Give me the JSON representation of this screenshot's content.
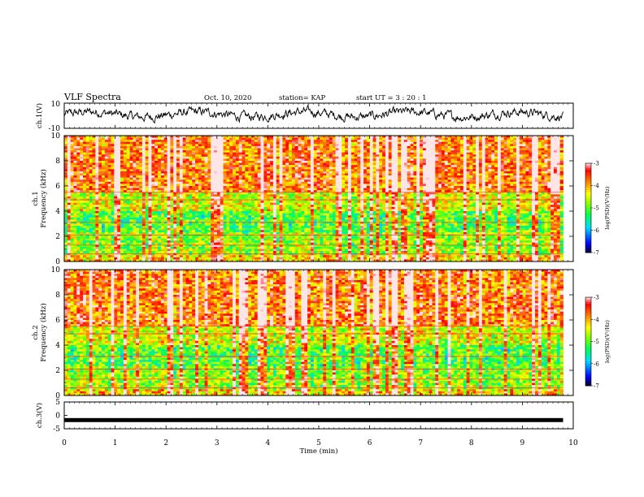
{
  "header": {
    "title": "VLF Spectra",
    "date": "Oct. 10, 2020",
    "station": "station= KAP",
    "start": "start  UT =  3 : 20 : 1"
  },
  "chart_data": [
    {
      "type": "line",
      "name": "ch1-waveform",
      "ylabel": "ch.1(V)",
      "ylim": [
        -10,
        10
      ],
      "y_ticklabels": [
        "10",
        "-10"
      ],
      "xlim": [
        0,
        10
      ]
    },
    {
      "type": "heatmap",
      "name": "ch1-spectrogram",
      "ylabel_line1": "ch.1",
      "ylabel_line2": "Frequency (kHz)",
      "ylim": [
        0,
        10
      ],
      "y_ticklabels": [
        "0",
        "2",
        "4",
        "6",
        "8",
        "10"
      ],
      "xlim": [
        0,
        10
      ],
      "colorbar": {
        "label": "log(PSD)(V²/Hz)",
        "range": [
          -7,
          -3
        ],
        "ticklabels": [
          "-3",
          "-4",
          "-5",
          "-6",
          "-7"
        ]
      },
      "data_extent_min": 9.8
    },
    {
      "type": "heatmap",
      "name": "ch2-spectrogram",
      "ylabel_line1": "ch.2",
      "ylabel_line2": "Frequency (kHz)",
      "ylim": [
        0,
        10
      ],
      "y_ticklabels": [
        "0",
        "2",
        "4",
        "6",
        "8",
        "10"
      ],
      "xlim": [
        0,
        10
      ],
      "colorbar": {
        "label": "log(PSD)(V²/Hz)",
        "range": [
          -7,
          -3
        ],
        "ticklabels": [
          "-3",
          "-4",
          "-5",
          "-6",
          "-7"
        ]
      },
      "data_extent_min": 9.8
    },
    {
      "type": "line",
      "name": "ch3-waveform",
      "ylabel": "ch.3(V)",
      "ylim": [
        -5,
        5
      ],
      "y_ticklabels": [
        "5",
        "0",
        "-5"
      ],
      "xlim": [
        0,
        10
      ],
      "xlabel": "Time (min)",
      "x_ticklabels": [
        "0",
        "1",
        "2",
        "3",
        "4",
        "5",
        "6",
        "7",
        "8",
        "9",
        "10"
      ]
    }
  ],
  "colors": {
    "axis": "#000000",
    "colormap": [
      "#000000",
      "#0000ff",
      "#00ffff",
      "#00ff00",
      "#ffff00",
      "#ff8000",
      "#ff0000",
      "#ffffff"
    ]
  }
}
